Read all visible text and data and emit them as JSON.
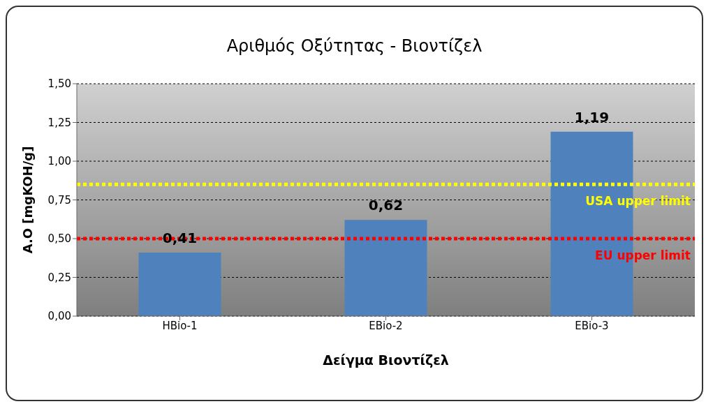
{
  "chart_data": {
    "type": "bar",
    "title": "Αριθμός Οξύτητας - Βιοντίζελ",
    "xlabel": "Δείγμα Βιοντίζελ",
    "ylabel": "A.O [mgKOH/g]",
    "categories": [
      "HBio-1",
      "EBio-2",
      "EBio-3"
    ],
    "values": [
      0.41,
      0.62,
      1.19
    ],
    "color": "#4f81bd",
    "value_labels": [
      "0,41",
      "0,62",
      "1,19"
    ],
    "ylim": [
      0,
      1.5
    ],
    "yticks": [
      {
        "value": 0,
        "label": "0,00"
      },
      {
        "value": 0.25,
        "label": "0,25"
      },
      {
        "value": 0.5,
        "label": "0,50"
      },
      {
        "value": 0.75,
        "label": "0,75"
      },
      {
        "value": 1,
        "label": "1,00"
      },
      {
        "value": 1.25,
        "label": "1,25"
      },
      {
        "value": 1.5,
        "label": "1,50"
      }
    ],
    "grid": "y",
    "legend": false,
    "ref_lines": [
      {
        "axis": "y",
        "value": 0.85,
        "label": "USA upper limit",
        "color": "#ffff00",
        "line_style": "dotted"
      },
      {
        "axis": "y",
        "value": 0.5,
        "label": "EU upper limit",
        "color": "#ff0000",
        "line_style": "dotted"
      }
    ]
  }
}
